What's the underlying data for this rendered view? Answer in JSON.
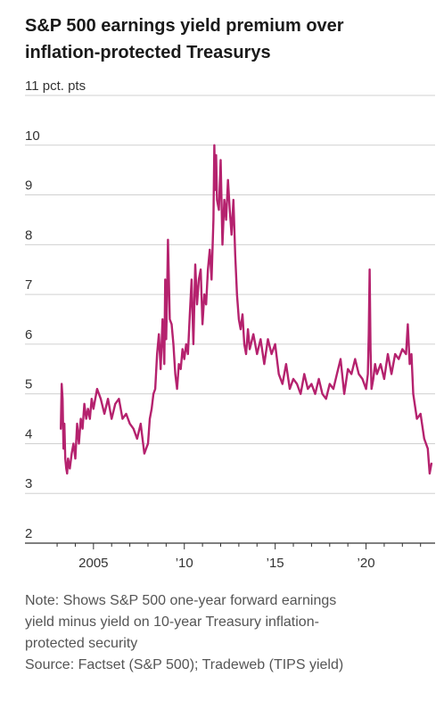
{
  "title_lines": [
    "S&P 500 earnings yield premium over",
    "inflation-protected Treasurys"
  ],
  "note_lines": [
    "Note: Shows S&P 500 one-year forward earnings",
    "yield minus yield on 10-year Treasury inflation-",
    "protected security"
  ],
  "source": "Source: Factset (S&P 500); Tradeweb (TIPS yield)",
  "colors": {
    "line": "#b5226e",
    "grid": "#d0d0d0",
    "axis": "#333333"
  },
  "chart_data": {
    "type": "line",
    "ylabel": "11 pct. pts",
    "ylim": [
      2,
      11
    ],
    "xlim": [
      2002.8,
      2023.8
    ],
    "y_ticks": [
      {
        "value": 11,
        "label": ""
      },
      {
        "value": 10,
        "label": "10"
      },
      {
        "value": 9,
        "label": "9"
      },
      {
        "value": 8,
        "label": "8"
      },
      {
        "value": 7,
        "label": "7"
      },
      {
        "value": 6,
        "label": "6"
      },
      {
        "value": 5,
        "label": "5"
      },
      {
        "value": 4,
        "label": "4"
      },
      {
        "value": 3,
        "label": "3"
      },
      {
        "value": 2,
        "label": "2"
      }
    ],
    "x_ticks": [
      {
        "value": 2005,
        "label": "2005"
      },
      {
        "value": 2010,
        "label": "’10"
      },
      {
        "value": 2015,
        "label": "’15"
      },
      {
        "value": 2020,
        "label": "’20"
      }
    ],
    "grid": true,
    "series": [
      {
        "x": [
          2003.2,
          2003.25,
          2003.3,
          2003.35,
          2003.4,
          2003.45,
          2003.5,
          2003.55,
          2003.6,
          2003.65,
          2003.7,
          2003.8,
          2003.9,
          2004.0,
          2004.1,
          2004.2,
          2004.3,
          2004.4,
          2004.5,
          2004.6,
          2004.7,
          2004.8,
          2004.9,
          2005.0,
          2005.2,
          2005.4,
          2005.6,
          2005.8,
          2006.0,
          2006.2,
          2006.4,
          2006.6,
          2006.8,
          2007.0,
          2007.2,
          2007.4,
          2007.6,
          2007.8,
          2007.9,
          2008.0,
          2008.1,
          2008.2,
          2008.3,
          2008.4,
          2008.5,
          2008.6,
          2008.7,
          2008.8,
          2008.9,
          2008.95,
          2009.0,
          2009.05,
          2009.1,
          2009.2,
          2009.3,
          2009.4,
          2009.5,
          2009.6,
          2009.7,
          2009.8,
          2009.9,
          2010.0,
          2010.1,
          2010.2,
          2010.3,
          2010.4,
          2010.5,
          2010.6,
          2010.7,
          2010.8,
          2010.9,
          2011.0,
          2011.1,
          2011.2,
          2011.3,
          2011.4,
          2011.5,
          2011.6,
          2011.65,
          2011.7,
          2011.75,
          2011.8,
          2011.9,
          2012.0,
          2012.1,
          2012.2,
          2012.3,
          2012.4,
          2012.5,
          2012.6,
          2012.7,
          2012.8,
          2012.9,
          2013.0,
          2013.1,
          2013.2,
          2013.3,
          2013.4,
          2013.5,
          2013.6,
          2013.8,
          2014.0,
          2014.2,
          2014.4,
          2014.6,
          2014.8,
          2015.0,
          2015.2,
          2015.4,
          2015.6,
          2015.8,
          2016.0,
          2016.2,
          2016.4,
          2016.6,
          2016.8,
          2017.0,
          2017.2,
          2017.4,
          2017.6,
          2017.8,
          2018.0,
          2018.2,
          2018.4,
          2018.6,
          2018.8,
          2019.0,
          2019.2,
          2019.4,
          2019.6,
          2019.8,
          2020.0,
          2020.1,
          2020.15,
          2020.2,
          2020.25,
          2020.3,
          2020.4,
          2020.5,
          2020.6,
          2020.8,
          2021.0,
          2021.2,
          2021.4,
          2021.6,
          2021.8,
          2022.0,
          2022.2,
          2022.3,
          2022.4,
          2022.5,
          2022.6,
          2022.8,
          2023.0,
          2023.2,
          2023.4,
          2023.5,
          2023.6
        ],
        "y": [
          4.3,
          5.2,
          4.9,
          3.9,
          4.4,
          3.7,
          3.5,
          3.4,
          3.7,
          3.6,
          3.5,
          3.8,
          4.0,
          3.7,
          4.4,
          4.0,
          4.5,
          4.3,
          4.8,
          4.5,
          4.7,
          4.5,
          4.9,
          4.7,
          5.1,
          4.9,
          4.6,
          4.9,
          4.5,
          4.8,
          4.9,
          4.5,
          4.6,
          4.4,
          4.3,
          4.1,
          4.4,
          3.8,
          3.9,
          4.0,
          4.5,
          4.7,
          5.0,
          5.1,
          5.8,
          6.2,
          5.5,
          6.5,
          5.6,
          7.3,
          6.1,
          7.0,
          8.1,
          6.5,
          6.4,
          6.0,
          5.4,
          5.1,
          5.6,
          5.5,
          5.9,
          5.7,
          6.0,
          5.8,
          6.6,
          7.3,
          6.0,
          7.6,
          6.8,
          7.3,
          7.5,
          6.4,
          7.0,
          6.8,
          7.5,
          7.9,
          7.3,
          8.5,
          10.0,
          9.1,
          9.8,
          8.9,
          8.7,
          9.7,
          8.0,
          8.9,
          8.5,
          9.3,
          8.7,
          8.2,
          8.9,
          7.8,
          7.0,
          6.5,
          6.3,
          6.6,
          6.0,
          5.8,
          6.3,
          5.9,
          6.2,
          5.8,
          6.1,
          5.6,
          6.1,
          5.8,
          6.0,
          5.4,
          5.2,
          5.6,
          5.1,
          5.3,
          5.2,
          5.0,
          5.4,
          5.1,
          5.2,
          5.0,
          5.3,
          5.0,
          4.9,
          5.2,
          5.1,
          5.4,
          5.7,
          5.0,
          5.5,
          5.4,
          5.7,
          5.4,
          5.3,
          5.1,
          5.4,
          6.2,
          7.5,
          5.9,
          5.1,
          5.3,
          5.6,
          5.4,
          5.6,
          5.3,
          5.8,
          5.4,
          5.8,
          5.7,
          5.9,
          5.8,
          6.4,
          5.6,
          5.8,
          5.0,
          4.5,
          4.6,
          4.1,
          3.9,
          3.4,
          3.6
        ]
      }
    ]
  }
}
